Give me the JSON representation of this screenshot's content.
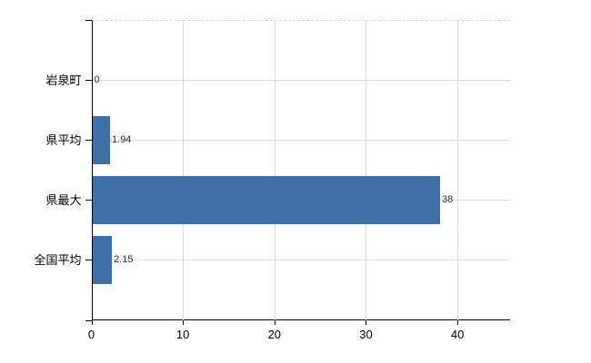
{
  "chart_data": {
    "type": "bar",
    "orientation": "horizontal",
    "title": "",
    "categories": [
      "岩泉町",
      "県平均",
      "県最大",
      "全国平均"
    ],
    "values": [
      0,
      1.94,
      38,
      2.15
    ],
    "value_labels": [
      "0",
      "1.94",
      "38",
      "2.15"
    ],
    "x_ticks": [
      0,
      10,
      20,
      30,
      40
    ],
    "x_tick_labels": [
      "0",
      "10",
      "20",
      "30",
      "40"
    ],
    "xlim": [
      0,
      45.7
    ],
    "xlabel": "",
    "ylabel": "",
    "grid": true,
    "legend": false,
    "plot_top_border_style": "dashed",
    "colors": {
      "bar": "#3e6fa7",
      "axis": "#000000",
      "gridline": "#d9d9d9",
      "category_label": "#000000",
      "tick_label": "#000000",
      "value_label": "#2b2b2b",
      "background": "#ffffff"
    }
  }
}
